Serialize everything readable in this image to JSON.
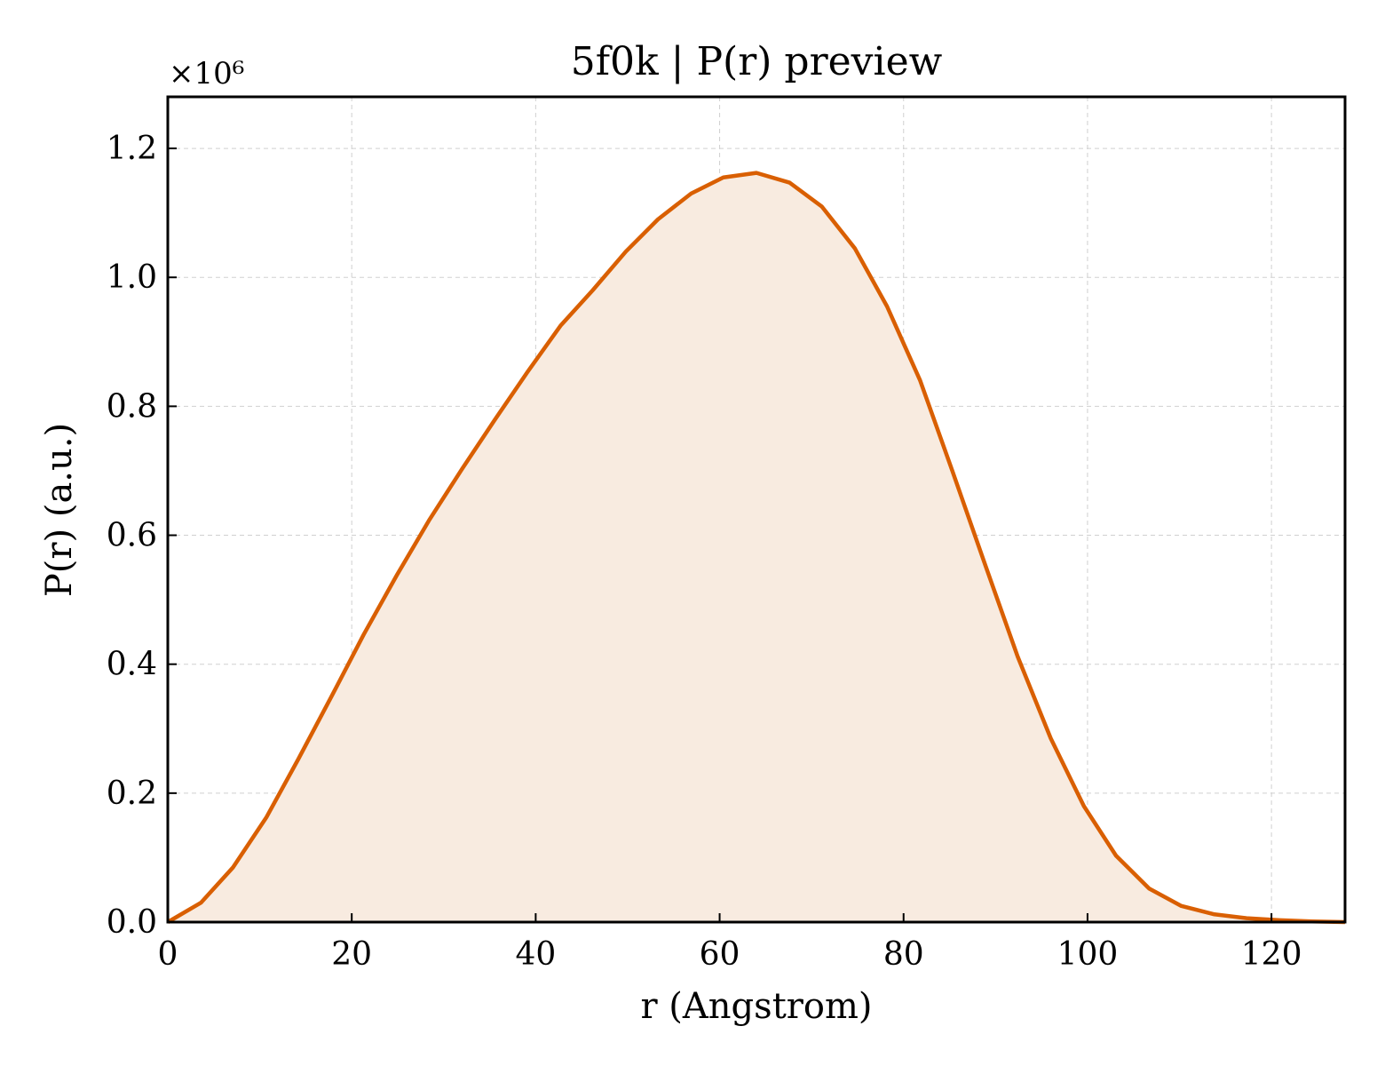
{
  "chart_data": {
    "type": "area",
    "title": "5f0k | P(r) preview",
    "xlabel": "r (Angstrom)",
    "ylabel": "P(r) (a.u.)",
    "y_offset_label": "×10⁶",
    "y_scale": 1000000,
    "xlim": [
      0,
      128
    ],
    "ylim": [
      0,
      1.28
    ],
    "xticks": [
      0,
      20,
      40,
      60,
      80,
      100,
      120
    ],
    "xtick_labels": [
      "0",
      "20",
      "40",
      "60",
      "80",
      "100",
      "120"
    ],
    "yticks": [
      0.0,
      0.2,
      0.4,
      0.6,
      0.8,
      1.0,
      1.2
    ],
    "ytick_labels": [
      "0.0",
      "0.2",
      "0.4",
      "0.6",
      "0.8",
      "1.0",
      "1.2"
    ],
    "grid": true,
    "colors": {
      "line": "#d95f02",
      "fill": "#f8ebe0"
    },
    "series": [
      {
        "x": [
          0,
          3.6,
          7.1,
          10.7,
          14.2,
          17.8,
          21.3,
          24.9,
          28.4,
          32.0,
          35.6,
          39.1,
          42.7,
          46.2,
          49.8,
          53.3,
          56.9,
          60.4,
          64.0,
          67.6,
          71.1,
          74.7,
          78.2,
          81.8,
          85.3,
          88.9,
          92.4,
          96.0,
          99.6,
          103.1,
          106.7,
          110.2,
          113.8,
          117.3,
          120.9,
          124.4,
          128.0
        ],
        "y": [
          0.0,
          0.03,
          0.085,
          0.162,
          0.253,
          0.35,
          0.446,
          0.538,
          0.623,
          0.703,
          0.78,
          0.853,
          0.925,
          0.98,
          1.04,
          1.09,
          1.13,
          1.155,
          1.162,
          1.147,
          1.11,
          1.045,
          0.955,
          0.84,
          0.7,
          0.553,
          0.412,
          0.285,
          0.18,
          0.103,
          0.052,
          0.025,
          0.012,
          0.006,
          0.003,
          0.001,
          0.0
        ]
      }
    ]
  }
}
